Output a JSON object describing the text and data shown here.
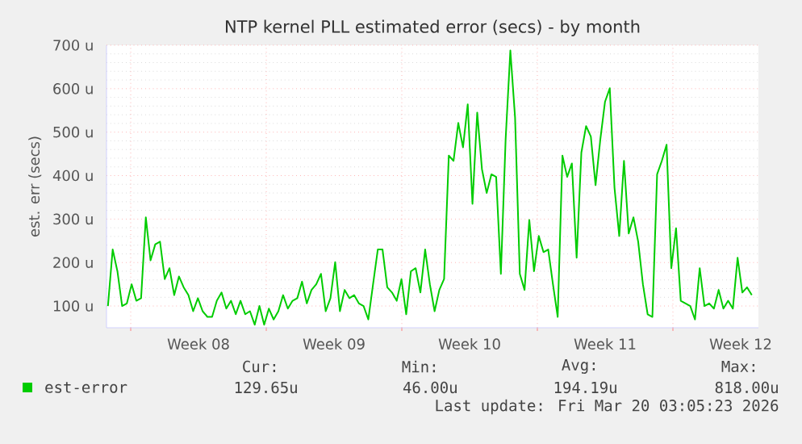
{
  "chart_data": {
    "type": "line",
    "title": "NTP kernel PLL estimated error (secs) - by month",
    "ylabel": "est. err (secs)",
    "categories": [
      null,
      null,
      null,
      null,
      null,
      null,
      null,
      null,
      null,
      null,
      null,
      null,
      null,
      null,
      null,
      null,
      null,
      null,
      null,
      null,
      null,
      null,
      null,
      null,
      null,
      null,
      null,
      null,
      null,
      null,
      null,
      null,
      null,
      null,
      null,
      null,
      null,
      null,
      null,
      null,
      null,
      null,
      null,
      null,
      null,
      null,
      null,
      null,
      null,
      null,
      null,
      null,
      null,
      null,
      null,
      null,
      null,
      null,
      null,
      null,
      null,
      null,
      null,
      null,
      null,
      null,
      null,
      null,
      null,
      null,
      null,
      null,
      null,
      null,
      null,
      null,
      null,
      null,
      null,
      null,
      null,
      null,
      null,
      null,
      null,
      null,
      null,
      null,
      null,
      null,
      null,
      null,
      null,
      null,
      null,
      null,
      null,
      null,
      null,
      null,
      null,
      null,
      null,
      null,
      null,
      null,
      null,
      null,
      null,
      null,
      null,
      null,
      null,
      null,
      null,
      null,
      null,
      null,
      null,
      null,
      null,
      null,
      null,
      null,
      null,
      null,
      null,
      null,
      null,
      null,
      null,
      null,
      null,
      null,
      null,
      null,
      null
    ],
    "series": [
      {
        "name": "est-error",
        "color": "#00cc00",
        "values": [
          100,
          230,
          180,
          100,
          106,
          150,
          112,
          118,
          304,
          205,
          242,
          248,
          162,
          187,
          125,
          168,
          143,
          125,
          88,
          118,
          88,
          75,
          75,
          112,
          131,
          94,
          112,
          81,
          112,
          81,
          88,
          57,
          100,
          57,
          94,
          69,
          88,
          125,
          94,
          112,
          118,
          156,
          106,
          137,
          150,
          174,
          88,
          118,
          201,
          88,
          137,
          118,
          125,
          106,
          100,
          69,
          150,
          230,
          230,
          143,
          131,
          112,
          162,
          81,
          180,
          187,
          131,
          230,
          150,
          88,
          137,
          162,
          446,
          434,
          521,
          465,
          564,
          335,
          545,
          415,
          360,
          403,
          397,
          174,
          483,
          688,
          533,
          174,
          137,
          298,
          180,
          261,
          224,
          230,
          150,
          75,
          446,
          397,
          428,
          211,
          453,
          514,
          490,
          378,
          483,
          570,
          601,
          372,
          261,
          434,
          267,
          304,
          248,
          150,
          81,
          75,
          403,
          434,
          471,
          187,
          279,
          112,
          106,
          100,
          69,
          187,
          100,
          106,
          94,
          137,
          94,
          112,
          94,
          211,
          131,
          143,
          125
        ]
      }
    ],
    "ylim": [
      50,
      700
    ],
    "yticks": [
      {
        "value": 100,
        "label": "100 u"
      },
      {
        "value": 200,
        "label": "200 u"
      },
      {
        "value": 300,
        "label": "300 u"
      },
      {
        "value": 400,
        "label": "400 u"
      },
      {
        "value": 500,
        "label": "500 u"
      },
      {
        "value": 600,
        "label": "600 u"
      },
      {
        "value": 700,
        "label": "700 u"
      }
    ],
    "grid": true,
    "legend": "bottom",
    "annotations": [
      "Week 08",
      "Week 09",
      "Week 10",
      "Week 11",
      "Week 12",
      "Cur:",
      "Min:",
      "Avg:",
      "Max:",
      "129.65u",
      "46.00u",
      "194.19u",
      "818.00u",
      "Last update: Fri Mar 20 03:05:23 2026"
    ]
  }
}
